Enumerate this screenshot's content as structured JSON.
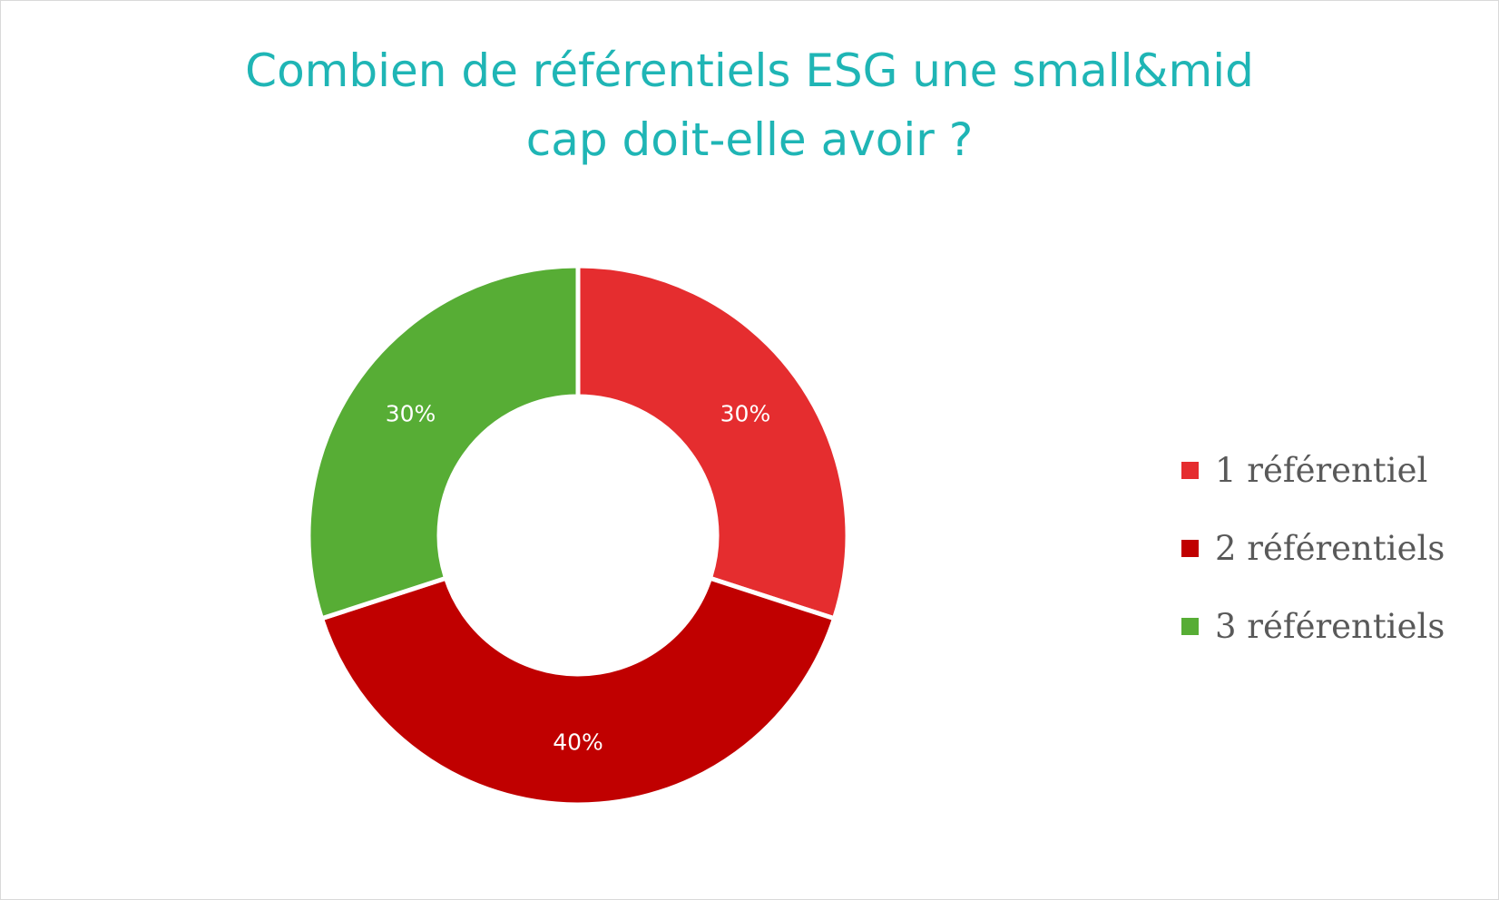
{
  "chart_data": {
    "type": "pie",
    "variant": "donut",
    "title_lines": [
      "Combien de référentiels ESG une small&mid",
      "cap doit-elle avoir ?"
    ],
    "categories": [
      "1 référentiel",
      "2 référentiels",
      "3 référentiels"
    ],
    "values": [
      30,
      40,
      30
    ],
    "data_labels": [
      "30%",
      "40%",
      "30%"
    ],
    "colors": [
      "#e52d2f",
      "#c00000",
      "#57ad35"
    ],
    "legend_position": "right"
  }
}
